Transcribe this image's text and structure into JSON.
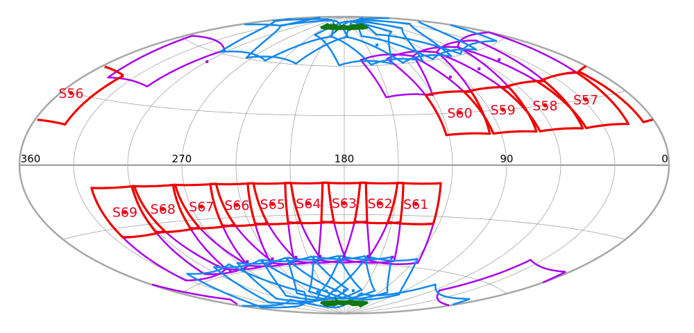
{
  "map": {
    "projection": "aitoff",
    "colors": {
      "background": "#ffffff",
      "grid": "#999999",
      "equator": "#9a9a9a",
      "ecliptic": "#9a9a9a",
      "outline": "#a6a6a6",
      "sector_current": "#ee0000",
      "sector_purple": "#aa00ee",
      "sector_blue": "#1188ee",
      "sector_green": "#117711"
    },
    "longitude_labels": [
      {
        "text": "360",
        "lon": 360
      },
      {
        "text": "270",
        "lon": 270
      },
      {
        "text": "180",
        "lon": 180
      },
      {
        "text": "90",
        "lon": 90
      },
      {
        "text": "0",
        "lon": 0
      }
    ],
    "sectors": [
      {
        "id": "S56",
        "lon": 354,
        "lat": 30
      },
      {
        "id": "S57",
        "lon": 28,
        "lat": 30
      },
      {
        "id": "S58",
        "lon": 55,
        "lat": 30
      },
      {
        "id": "S59",
        "lon": 82,
        "lat": 30
      },
      {
        "id": "S60",
        "lon": 109,
        "lat": 30
      },
      {
        "id": "S61",
        "lon": 138,
        "lat": -23
      },
      {
        "id": "S62",
        "lon": 159,
        "lat": -23
      },
      {
        "id": "S63",
        "lon": 180,
        "lat": -23
      },
      {
        "id": "S64",
        "lon": 201,
        "lat": -23
      },
      {
        "id": "S65",
        "lon": 222,
        "lat": -23
      },
      {
        "id": "S66",
        "lon": 243,
        "lat": -23
      },
      {
        "id": "S67",
        "lon": 264,
        "lat": -23
      },
      {
        "id": "S68",
        "lon": 287,
        "lat": -23
      },
      {
        "id": "S69",
        "lon": 310,
        "lat": -23
      }
    ],
    "purple_markers": [
      {
        "lon": 300,
        "lat": 55
      },
      {
        "lon": 98,
        "lat": 50
      },
      {
        "lon": 70,
        "lat": 52
      },
      {
        "lon": 45,
        "lat": 54
      },
      {
        "lon": 140,
        "lat": -55
      },
      {
        "lon": 160,
        "lat": -55
      },
      {
        "lon": 180,
        "lat": -55
      },
      {
        "lon": 200,
        "lat": -55
      },
      {
        "lon": 220,
        "lat": -55
      },
      {
        "lon": 240,
        "lat": -55
      },
      {
        "lon": 262,
        "lat": -55
      },
      {
        "lon": 285,
        "lat": -58
      }
    ],
    "blue_markers": [
      {
        "lon": 135,
        "lat": 72
      },
      {
        "lon": 165,
        "lat": -76
      },
      {
        "lon": 180,
        "lat": -76
      },
      {
        "lon": 195,
        "lat": -76
      },
      {
        "lon": 210,
        "lat": -76
      },
      {
        "lon": 225,
        "lat": -76
      }
    ]
  }
}
